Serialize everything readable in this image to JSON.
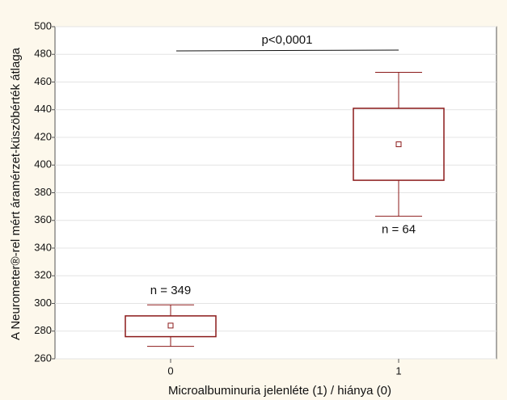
{
  "chart_data": {
    "type": "box",
    "y_label": "A Neurometer®-rel mért áramérzet-küszöbérték átlaga",
    "x_label": "Microalbuminuria jelenléte (1) / hiánya (0)",
    "categories": [
      "0",
      "1"
    ],
    "whisker_low": [
      269,
      363
    ],
    "q1": [
      276,
      389
    ],
    "mean": [
      284,
      415
    ],
    "q3": [
      291,
      441
    ],
    "whisker_high": [
      299,
      467
    ],
    "color": "#8b1a1a",
    "n_labels": [
      "n = 349",
      "n = 64"
    ],
    "significance": "p<0,0001",
    "ylim": [
      260,
      500
    ],
    "yticks": [
      260,
      280,
      300,
      320,
      340,
      360,
      380,
      400,
      420,
      440,
      460,
      480,
      500
    ],
    "grid": true
  }
}
